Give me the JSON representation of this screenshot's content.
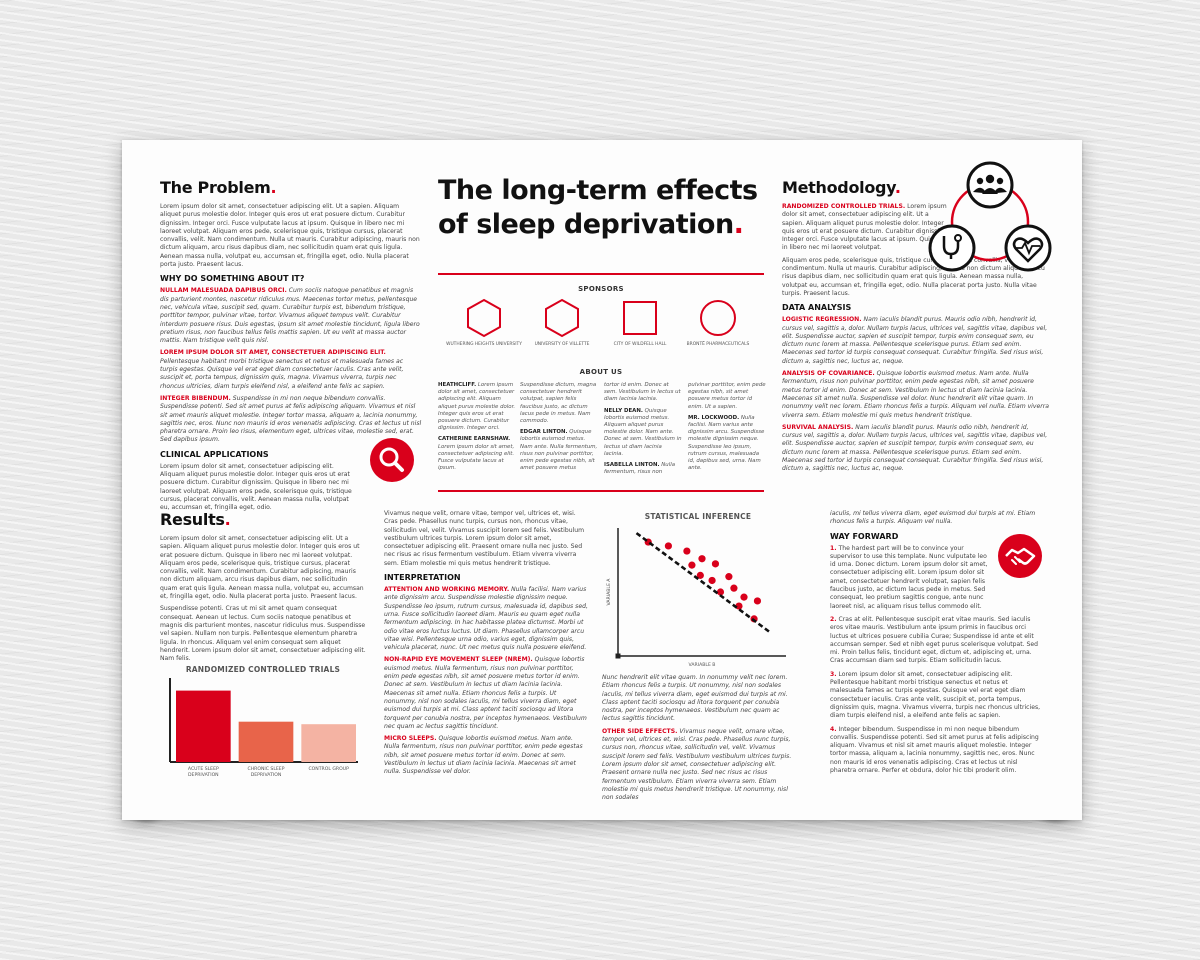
{
  "problem": {
    "heading": "The Problem",
    "intro": "Lorem ipsum dolor sit amet, consectetuer adipiscing elit. Ut a sapien. Aliquam aliquet purus molestie dolor. Integer quis eros ut erat posuere dictum. Curabitur dignissim. Integer orci. Fusce vulputate lacus at ipsum. Quisque in libero nec mi laoreet volutpat. Aliquam eros pede, scelerisque quis, tristique cursus, placerat convallis, velit. Nam condimentum. Nulla ut mauris. Curabitur adipiscing, mauris non dictum aliquam, arcu risus dapibus diam, nec sollicitudin quam erat quis ligula. Aenean massa nulla, volutpat eu, accumsan et, fringilla eget, odio. Nulla placerat porta justo. Praesent lacus.",
    "why_heading": "WHY DO SOMETHING ABOUT IT?",
    "why_items": [
      {
        "lead": "NULLAM MALESUADA DAPIBUS ORCI.",
        "text": " Cum sociis natoque penatibus et magnis dis parturient montes, nascetur ridiculus mus. Maecenas tortor metus, pellentesque nec, vehicula vitae, suscipit sed, quam. Curabitur turpis est, bibendum tristique, porttitor tempor, pulvinar vitae, tortor. Vivamus aliquet tempus velit. Curabitur interdum posuere risus. Duis egestas, ipsum sit amet molestie tincidunt, ligula libero pretium risus, non faucibus tellus felis mattis sapien. Ut eu velit at massa auctor mattis. Nam tristique velit quis nisl."
      },
      {
        "lead": "LOREM IPSUM DOLOR SIT AMET, CONSECTETUER ADIPISCING ELIT.",
        "text": " Pellentesque habitant morbi tristique senectus et netus et malesuada fames ac turpis egestas. Quisque vel erat eget diam consectetuer iaculis. Cras ante velit, suscipit et, porta tempus, dignissim quis, magna. Vivamus viverra, turpis nec rhoncus ultricies, diam turpis eleifend nisl, a eleifend ante felis ac sapien."
      },
      {
        "lead": "INTEGER BIBENDUM.",
        "text": " Suspendisse in mi non neque bibendum convallis. Suspendisse potenti. Sed sit amet purus at felis adipiscing aliquam. Vivamus et nisl sit amet mauris aliquet molestie. Integer tortor massa, aliquam a, lacinia nonummy, sagittis nec, eros. Nunc non mauris id eros venenatis adipiscing. Cras et lectus ut nisl pharetra ornare. Proin leo risus, elementum eget, ultrices vitae, molestie sed, erat. Sed dapibus ipsum."
      }
    ],
    "clinical_heading": "CLINICAL APPLICATIONS",
    "clinical_text": "Lorem ipsum dolor sit amet, consectetuer adipiscing elit. Aliquam aliquet purus molestie dolor. Integer quis eros ut erat posuere dictum. Curabitur dignissim. Quisque in libero nec mi laoreet volutpat. Aliquam eros pede, scelerisque quis, tristique cursus, placerat convallis, velit. Aenean massa nulla, volutpat eu, accumsan et, fringilla eget, odio."
  },
  "title": {
    "line1": "The long-term effects",
    "line2": "of sleep deprivation",
    "dot": "."
  },
  "sponsors": {
    "heading": "SPONSORS",
    "items": [
      {
        "name": "WUTHERING HEIGHTS UNIVERSITY",
        "shape": "hexagon"
      },
      {
        "name": "UNIVERSITY OF VILLETTE",
        "shape": "hexagon"
      },
      {
        "name": "CITY OF WILDFELL HALL",
        "shape": "square"
      },
      {
        "name": "BRONTË PHARMACEUTICALS",
        "shape": "circle"
      }
    ]
  },
  "about": {
    "heading": "ABOUT US",
    "columns": [
      [
        {
          "name": "HEATHCLIFF.",
          "text": " Lorem ipsum dolor sit amet, consectetuer adipiscing elit. Aliquam aliquet purus molestie dolor. Integer quis eros ut erat posuere dictum. Curabitur dignissim. Integer orci."
        },
        {
          "name": "CATHERINE EARNSHAW.",
          "text": " Lorem ipsum dolor sit amet, consectetuer adipiscing elit. Fusce vulputate lacus at ipsum."
        }
      ],
      [
        {
          "name": "",
          "text": "Suspendisse dictum, magna consectetuer hendrerit volutpat, sapien felis faucibus justo, ac dictum lacus pede in metus. Nam commodo."
        },
        {
          "name": "EDGAR LINTON.",
          "text": " Quisque lobortis euismod metus. Nam ante. Nulla fermentum, risus non pulvinar porttitor, enim pede egestas nibh, sit amet posuere metus"
        }
      ],
      [
        {
          "name": "",
          "text": "tortor id enim. Donec at sem. Vestibulum in lectus ut diam lacinia lacinia."
        },
        {
          "name": "NELLY DEAN.",
          "text": " Quisque lobortis euismod metus. Aliquam aliquet purus molestie dolor. Nam ante. Donec at sem. Vestibulum in lectus ut diam lacinia lacinia."
        },
        {
          "name": "ISABELLA LINTON.",
          "text": " Nulla fermentum, risus non"
        }
      ],
      [
        {
          "name": "",
          "text": "pulvinar porttitor, enim pede egestas nibh, sit amet posuere metus tortor id enim. Ut a sapien."
        },
        {
          "name": "MR. LOCKWOOD.",
          "text": " Nulla facilisi. Nam varius ante dignissim arcu. Suspendisse molestie dignissim neque. Suspendisse leo ipsum, rutrum cursus, malesuada id, dapibus sed, urna. Nam ante."
        }
      ]
    ]
  },
  "methodology": {
    "heading": "Methodology",
    "intro_lead": "RANDOMIZED CONTROLLED TRIALS.",
    "intro": " Lorem ipsum dolor sit amet, consectetuer adipiscing elit. Ut a sapien. Aliquam aliquet purus molestie dolor. Integer quis eros ut erat posuere dictum. Curabitur dignissim. Integer orci. Fusce vulputate lacus at ipsum. Quisque in libero nec mi laoreet volutpat.",
    "intro2": "Aliquam eros pede, scelerisque quis, tristique cursus, placerat convallis, velit. Nam condimentum. Nulla ut mauris. Curabitur adipiscing, mauris non dictum aliquam, arcu risus dapibus diam, nec sollicitudin quam erat quis ligula. Aenean massa nulla, volutpat eu, accumsan et, fringilla eget, odio. Nulla placerat porta justo. Nulla vitae turpis. Praesent lacus.",
    "analysis_heading": "DATA ANALYSIS",
    "analysis_items": [
      {
        "lead": "LOGISTIC REGRESSION.",
        "text": " Nam iaculis blandit purus. Mauris odio nibh, hendrerit id, cursus vel, sagittis a, dolor. Nullam turpis lacus, ultrices vel, sagittis vitae, dapibus vel, elit. Suspendisse auctor, sapien et suscipit tempor, turpis enim consequat sem, eu dictum nunc lorem at massa. Pellentesque scelerisque purus. Etiam sed enim. Maecenas sed tortor id turpis consequat consequat. Curabitur fringilla. Sed risus wisi, dictum a, sagittis nec, luctus ac, neque."
      },
      {
        "lead": "ANALYSIS OF COVARIANCE.",
        "text": " Quisque lobortis euismod metus. Nam ante. Nulla fermentum, risus non pulvinar porttitor, enim pede egestas nibh, sit amet posuere metus tortor id enim. Donec at sem. Vestibulum in lectus ut diam lacinia lacinia. Maecenas sit amet nulla. Suspendisse vel dolor. Nunc hendrerit elit vitae quam. In nonummy velit nec lorem. Etiam rhoncus felis a turpis. Aliquam vel nulla. Etiam viverra viverra sem. Etiam molestie mi quis metus hendrerit tristique."
      },
      {
        "lead": "SURVIVAL ANALYSIS.",
        "text": " Nam iaculis blandit purus. Mauris odio nibh, hendrerit id, cursus vel, sagittis a, dolor. Nullam turpis lacus, ultrices vel, sagittis vitae, dapibus vel, elit. Suspendisse auctor, sapien et suscipit tempor, turpis enim consequat sem, eu dictum nunc lorem at massa. Pellentesque scelerisque purus. Etiam sed enim. Maecenas sed tortor id turpis consequat consequat. Curabitur fringilla. Sed risus wisi, dictum a, sagittis nec, luctus ac, neque."
      }
    ],
    "diagram_icons": [
      "group-icon",
      "stethoscope-icon",
      "heart-pulse-icon"
    ]
  },
  "results": {
    "heading": "Results",
    "p1": "Lorem ipsum dolor sit amet, consectetuer adipiscing elit. Ut a sapien. Aliquam aliquet purus molestie dolor. Integer quis eros ut erat posuere dictum. Quisque in libero nec mi laoreet volutpat. Aliquam eros pede, scelerisque quis, tristique cursus, placerat convallis, velit. Nam condimentum. Curabitur adipiscing, mauris non dictum aliquam, arcu risus dapibus diam, nec sollicitudin quam erat quis ligula. Aenean massa nulla, volutpat eu, accumsan et, fringilla eget, odio. Nulla placerat porta justo. Praesent lacus.",
    "p2": "Suspendisse potenti. Cras ut mi sit amet quam consequat consequat. Aenean ut lectus. Cum sociis natoque penatibus et magnis dis parturient montes, nascetur ridiculus mus. Suspendisse vel sapien. Nullam non turpis. Pellentesque elementum pharetra ligula. In rhoncus. Aliquam vel enim consequat sem aliquet hendrerit. Lorem ipsum dolor sit amet, consectetuer adipiscing elit. Nam felis."
  },
  "interpretation": {
    "p0": "Vivamus neque velit, ornare vitae, tempor vel, ultrices et, wisi. Cras pede. Phasellus nunc turpis, cursus non, rhoncus vitae, sollicitudin vel, velit. Vivamus suscipit lorem sed felis. Vestibulum vestibulum ultrices turpis. Lorem ipsum dolor sit amet, consectetuer adipiscing elit. Praesent ornare nulla nec justo. Sed nec risus ac risus fermentum vestibulum. Etiam viverra viverra sem. Etiam molestie mi quis metus hendrerit tristique.",
    "heading": "INTERPRETATION",
    "items": [
      {
        "lead": "ATTENTION AND WORKING MEMORY.",
        "text": " Nulla facilisi. Nam varius ante dignissim arcu. Suspendisse molestie dignissim neque. Suspendisse leo ipsum, rutrum cursus, malesuada id, dapibus sed, urna. Fusce sollicitudin laoreet diam. Mauris eu quam eget nulla fermentum adipiscing. In hac habitasse platea dictumst. Morbi ut odio vitae eros luctus luctus. Ut diam. Phasellus ullamcorper arcu vitae wisi. Pellentesque urna odio, varius eget, dignissim quis, vehicula placerat, nunc. Ut nec metus quis nulla posuere eleifend."
      },
      {
        "lead": "NON-RAPID EYE MOVEMENT SLEEP (NREM).",
        "text": " Quisque lobortis euismod metus. Nulla fermentum, risus non pulvinar porttitor, enim pede egestas nibh, sit amet posuere metus tortor id enim. Donec at sem. Vestibulum in lectus ut diam lacinia lacinia. Maecenas sit amet nulla. Etiam rhoncus felis a turpis. Ut nonummy, nisl non sodales iaculis, mi tellus viverra diam, eget euismod dui turpis at mi. Class aptent taciti sociosqu ad litora torquent per conubia nostra, per inceptos hymenaeos. Vestibulum nec quam ac lectus sagittis tincidunt."
      },
      {
        "lead": "MICRO SLEEPS.",
        "text": " Quisque lobortis euismod metus. Nam ante. Nulla fermentum, risus non pulvinar porttitor, enim pede egestas nibh, sit amet posuere metus tortor id enim. Donec at sem. Vestibulum in lectus ut diam lacinia lacinia. Maecenas sit amet nulla. Suspendisse vel dolor."
      }
    ]
  },
  "stat": {
    "heading": "STATISTICAL INFERENCE",
    "p1": "Nunc hendrerit elit vitae quam. In nonummy velit nec lorem. Etiam rhoncus felis a turpis. Ut nonummy, nisl non sodales iaculis, mi tellus viverra diam, eget euismod dui turpis at mi. Class aptent taciti sociosqu ad litora torquent per conubia nostra, per inceptos hymenaeos. Vestibulum nec quam ac lectus sagittis tincidunt.",
    "side_lead": "OTHER SIDE EFFECTS.",
    "side_text": " Vivamus neque velit, ornare vitae, tempor vel, ultrices et, wisi. Cras pede. Phasellus nunc turpis, cursus non, rhoncus vitae, sollicitudin vel, velit. Vivamus suscipit lorem sed felis. Vestibulum vestibulum ultrices turpis. Lorem ipsum dolor sit amet, consectetuer adipiscing elit. Praesent ornare nulla nec justo. Sed nec risus ac risus fermentum vestibulum. Etiam viverra viverra sem. Etiam molestie mi quis metus hendrerit tristique. Ut nonummy, nisl non sodales"
  },
  "wayforward": {
    "p0": "iaculis, mi tellus viverra diam, eget euismod dui turpis at mi. Etiam rhoncus felis a turpis. Aliquam vel nulla.",
    "heading": "WAY FORWARD",
    "items": [
      {
        "n": "1.",
        "text": " The hardest part will be to convince your supervisor to use this template. Nunc vulputate leo id urna. Donec dictum. Lorem ipsum dolor sit amet, consectetuer adipiscing elit. Lorem ipsum dolor sit amet, consectetuer hendrerit volutpat, sapien felis faucibus justo, ac dictum lacus pede in metus. Sed consequat, leo pretium sagittis congue, ante nunc laoreet nisl, ac aliquam risus tellus commodo elit."
      },
      {
        "n": "2.",
        "text": " Cras at elit. Pellentesque suscipit erat vitae mauris. Sed iaculis eros vitae mauris. Vestibulum ante ipsum primis in faucibus orci luctus et ultrices posuere cubilia Curae; Suspendisse id ante et elit accumsan semper. Sed et nibh eget purus scelerisque volutpat. Sed mi. Proin tellus felis, tincidunt eget, dictum et, adipiscing et, urna. Cras accumsan diam sed turpis. Etiam sollicitudin lacus."
      },
      {
        "n": "3.",
        "text": " Lorem ipsum dolor sit amet, consectetuer adipiscing elit. Pellentesque habitant morbi tristique senectus et netus et malesuada fames ac turpis egestas. Quisque vel erat eget diam consectetuer iaculis. Cras ante velit, suscipit et, porta tempus, dignissim quis, magna. Vivamus viverra, turpis nec rhoncus ultricies, diam turpis eleifend nisl, a eleifend ante felis ac sapien."
      },
      {
        "n": "4.",
        "text": " Integer bibendum. Suspendisse in mi non neque bibendum convallis. Suspendisse potenti. Sed sit amet purus at felis adipiscing aliquam. Vivamus et nisl sit amet mauris aliquet molestie. Integer tortor massa, aliquam a, lacinia nonummy, sagittis nec, eros. Nunc non mauris id eros venenatis adipiscing. Cras et lectus ut nisl pharetra ornare. Perfer et obdura, dolor hic tibi proderit olim."
      }
    ]
  },
  "colors": {
    "accent": "#d9001b",
    "bar2": "#e8644a",
    "bar3": "#f4b3a3"
  },
  "chart_data": [
    {
      "type": "bar",
      "title": "RANDOMIZED CONTROLLED TRIALS",
      "categories": [
        "ACUTE SLEEP DEPRIVATION",
        "CHRONIC SLEEP DEPRIVATION",
        "CONTROL GROUP"
      ],
      "values": [
        85,
        48,
        45
      ],
      "ylim": [
        0,
        100
      ],
      "grid": false
    },
    {
      "type": "scatter",
      "title": "STATISTICAL INFERENCE",
      "xlabel": "VARIABLE B",
      "ylabel": "VARIABLE A",
      "xlim": [
        0,
        10
      ],
      "ylim": [
        0,
        10
      ],
      "points": [
        [
          1.8,
          8.9
        ],
        [
          3.0,
          8.6
        ],
        [
          4.1,
          8.2
        ],
        [
          4.4,
          7.1
        ],
        [
          5.0,
          7.6
        ],
        [
          4.9,
          6.3
        ],
        [
          5.8,
          7.2
        ],
        [
          5.6,
          5.9
        ],
        [
          6.1,
          5.0
        ],
        [
          6.6,
          6.2
        ],
        [
          6.9,
          5.3
        ],
        [
          7.5,
          4.6
        ],
        [
          7.2,
          3.9
        ],
        [
          8.3,
          4.3
        ],
        [
          8.1,
          2.9
        ]
      ],
      "trend": [
        [
          1.1,
          9.6
        ],
        [
          9.0,
          1.9
        ]
      ]
    }
  ]
}
